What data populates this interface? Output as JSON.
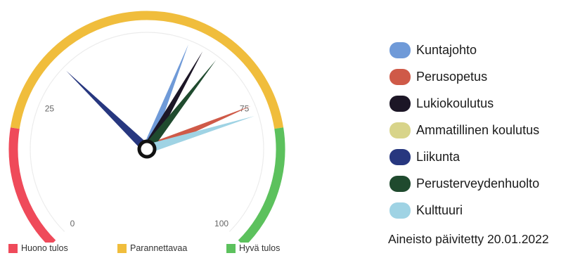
{
  "chart_data": {
    "type": "gauge",
    "range": [
      0,
      100
    ],
    "ticks": [
      {
        "value": 0,
        "label": "0"
      },
      {
        "value": 25,
        "label": "25"
      },
      {
        "value": 75,
        "label": "75"
      },
      {
        "value": 100,
        "label": "100"
      }
    ],
    "bands": [
      {
        "from": 0,
        "to": 20,
        "color": "#ef4a5a"
      },
      {
        "from": 20,
        "to": 80,
        "color": "#f0bd3c"
      },
      {
        "from": 80,
        "to": 100,
        "color": "#5cc15d"
      }
    ],
    "series": [
      {
        "name": "Kuntajohto",
        "value": 58,
        "color": "#6f9ad8"
      },
      {
        "name": "Perusopetus",
        "value": 75,
        "color": "#cf5a48"
      },
      {
        "name": "Lukiokoulutus",
        "value": 61,
        "color": "#1c1626"
      },
      {
        "name": "Ammatillinen koulutus",
        "value": null,
        "color": "#d8d48a"
      },
      {
        "name": "Liikunta",
        "value": 33,
        "color": "#27377f"
      },
      {
        "name": "Perusterveydenhuolto",
        "value": 64,
        "color": "#1f4a2e"
      },
      {
        "name": "Kulttuuri",
        "value": 77,
        "color": "#9fd3e4"
      }
    ]
  },
  "band_legend": [
    {
      "label": "Huono tulos",
      "color": "#ef4a5a"
    },
    {
      "label": "Parannettavaa",
      "color": "#f0bd3c"
    },
    {
      "label": "Hyvä tulos",
      "color": "#5cc15d"
    }
  ],
  "updated_text": "Aineisto päivitetty 20.01.2022"
}
